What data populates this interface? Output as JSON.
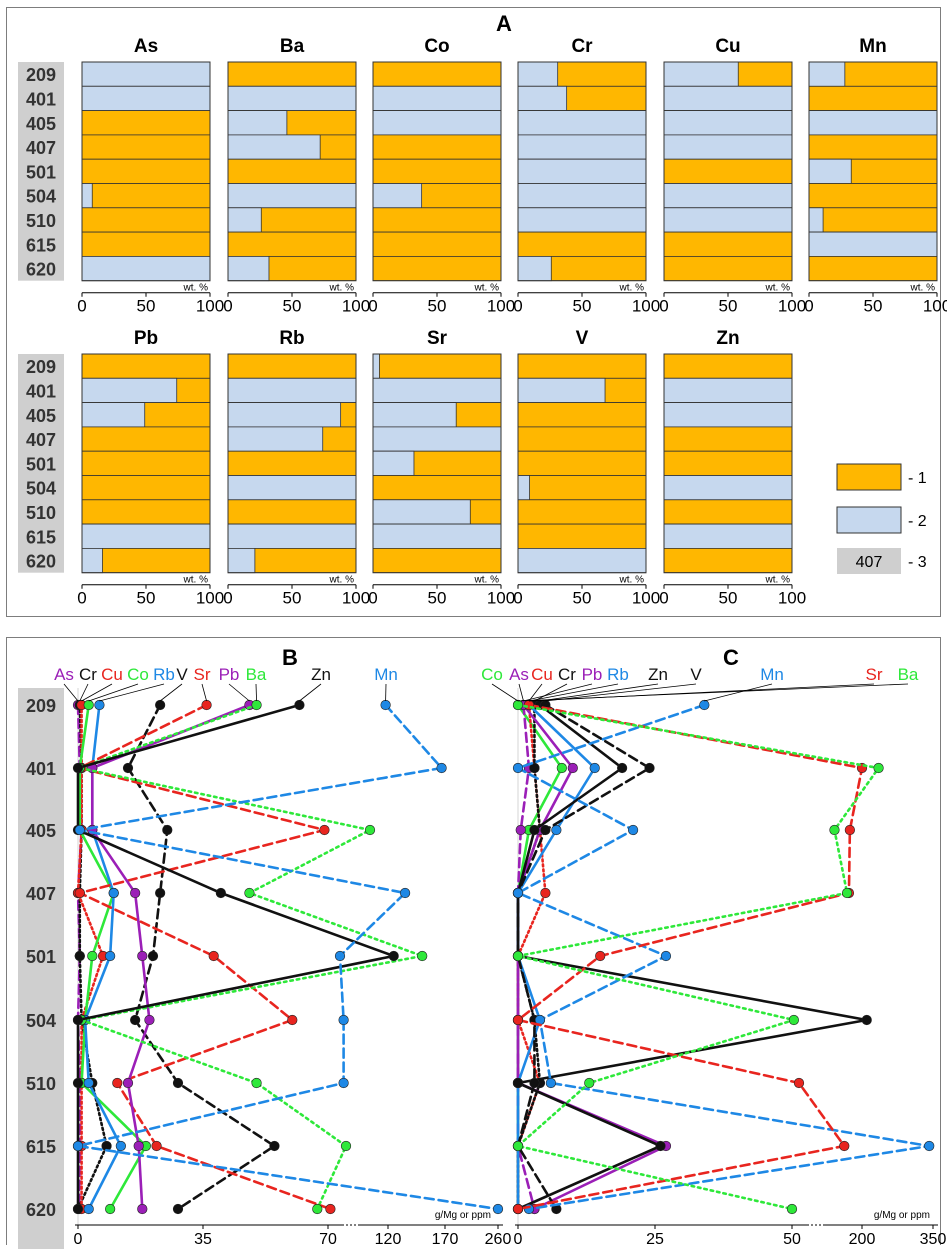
{
  "colors": {
    "orange": "#ffb700",
    "blue": "#c6d8ee",
    "gray": "#cfcfcf",
    "frame": "#7d7d7d"
  },
  "panel_a": {
    "label": "A",
    "sample_ids": [
      "209",
      "401",
      "405",
      "407",
      "501",
      "504",
      "510",
      "615",
      "620"
    ],
    "unit": "wt. %",
    "ticks": [
      "0",
      "50",
      "100"
    ]
  },
  "legend": [
    {
      "swatch": "orange",
      "text": "- 1",
      "box_text": ""
    },
    {
      "swatch": "blue",
      "text": "- 2",
      "box_text": ""
    },
    {
      "swatch": "gray",
      "text": "- 3",
      "box_text": "407"
    }
  ],
  "panel_b": {
    "label": "B",
    "unit": "g/Mg or ppm",
    "tick_labels": [
      "0",
      "35",
      "70",
      "120",
      "170",
      "260"
    ],
    "series_labels": [
      "As",
      "Cr",
      "Cu",
      "Co",
      "Rb",
      "V",
      "Sr",
      "Pb",
      "Ba",
      "Zn",
      "Mn"
    ]
  },
  "panel_c": {
    "label": "C",
    "unit": "g/Mg or ppm",
    "tick_labels": [
      "0",
      "25",
      "50",
      "200",
      "350"
    ],
    "series_labels": [
      "Co",
      "As",
      "Cu",
      "Cr",
      "Pb",
      "Rb",
      "Zn",
      "V",
      "Mn",
      "Sr",
      "Ba"
    ]
  },
  "chart_data": [
    {
      "type": "bar",
      "stacked_percent": true,
      "title": "A",
      "xlabel": "wt. %",
      "xlim": [
        0,
        100
      ],
      "categories": [
        "209",
        "401",
        "405",
        "407",
        "501",
        "504",
        "510",
        "615",
        "620"
      ],
      "series": [
        {
          "name": "1",
          "color": "#ffb700"
        },
        {
          "name": "2",
          "color": "#c6d8ee"
        }
      ],
      "element_order": [
        "As",
        "Ba",
        "Co",
        "Cr",
        "Cu",
        "Mn",
        "Pb",
        "Rb",
        "Sr",
        "V",
        "Zn"
      ],
      "elements": {
        "As": [
          [
            0,
            100
          ],
          [
            0,
            100
          ],
          [
            100,
            0
          ],
          [
            100,
            0
          ],
          [
            100,
            0
          ],
          [
            92,
            8
          ],
          [
            100,
            0
          ],
          [
            100,
            0
          ],
          [
            0,
            100
          ]
        ],
        "Ba": [
          [
            100,
            0
          ],
          [
            0,
            100
          ],
          [
            54,
            46
          ],
          [
            28,
            72
          ],
          [
            100,
            0
          ],
          [
            0,
            100
          ],
          [
            74,
            26
          ],
          [
            100,
            0
          ],
          [
            68,
            32
          ]
        ],
        "Co": [
          [
            100,
            0
          ],
          [
            0,
            100
          ],
          [
            0,
            100
          ],
          [
            100,
            0
          ],
          [
            100,
            0
          ],
          [
            62,
            38
          ],
          [
            100,
            0
          ],
          [
            100,
            0
          ],
          [
            100,
            0
          ]
        ],
        "Cr": [
          [
            69,
            31
          ],
          [
            62,
            38
          ],
          [
            0,
            100
          ],
          [
            0,
            100
          ],
          [
            0,
            100
          ],
          [
            0,
            100
          ],
          [
            0,
            100
          ],
          [
            100,
            0
          ],
          [
            74,
            26
          ]
        ],
        "Cu": [
          [
            42,
            58
          ],
          [
            0,
            100
          ],
          [
            0,
            100
          ],
          [
            0,
            100
          ],
          [
            100,
            0
          ],
          [
            0,
            100
          ],
          [
            0,
            100
          ],
          [
            100,
            0
          ],
          [
            100,
            0
          ]
        ],
        "Mn": [
          [
            72,
            28
          ],
          [
            100,
            0
          ],
          [
            0,
            100
          ],
          [
            100,
            0
          ],
          [
            67,
            33
          ],
          [
            100,
            0
          ],
          [
            89,
            11
          ],
          [
            0,
            100
          ],
          [
            100,
            0
          ]
        ],
        "Pb": [
          [
            100,
            0
          ],
          [
            26,
            74
          ],
          [
            51,
            49
          ],
          [
            100,
            0
          ],
          [
            100,
            0
          ],
          [
            100,
            0
          ],
          [
            100,
            0
          ],
          [
            0,
            100
          ],
          [
            84,
            16
          ]
        ],
        "Rb": [
          [
            100,
            0
          ],
          [
            0,
            100
          ],
          [
            12,
            88
          ],
          [
            26,
            74
          ],
          [
            100,
            0
          ],
          [
            0,
            100
          ],
          [
            100,
            0
          ],
          [
            0,
            100
          ],
          [
            79,
            21
          ]
        ],
        "Sr": [
          [
            95,
            5
          ],
          [
            0,
            100
          ],
          [
            35,
            65
          ],
          [
            0,
            100
          ],
          [
            68,
            32
          ],
          [
            100,
            0
          ],
          [
            24,
            76
          ],
          [
            0,
            100
          ],
          [
            100,
            0
          ]
        ],
        "V": [
          [
            100,
            0
          ],
          [
            32,
            68
          ],
          [
            100,
            0
          ],
          [
            100,
            0
          ],
          [
            100,
            0
          ],
          [
            91,
            9
          ],
          [
            100,
            0
          ],
          [
            100,
            0
          ],
          [
            0,
            100
          ]
        ],
        "Zn": [
          [
            100,
            0
          ],
          [
            0,
            100
          ],
          [
            0,
            100
          ],
          [
            100,
            0
          ],
          [
            100,
            0
          ],
          [
            0,
            100
          ],
          [
            100,
            0
          ],
          [
            0,
            100
          ],
          [
            100,
            0
          ]
        ]
      }
    },
    {
      "type": "line",
      "title": "B",
      "xlabel": "g/Mg or ppm",
      "categories": [
        "209",
        "401",
        "405",
        "407",
        "501",
        "504",
        "510",
        "615",
        "620"
      ],
      "axis_breaks": [
        70,
        120,
        170,
        260
      ],
      "series": [
        {
          "name": "As",
          "color": "#9b1fb7",
          "style": "dash",
          "values": [
            0,
            0.5,
            1,
            0,
            0.5,
            0,
            0.5,
            0.5,
            0.3
          ]
        },
        {
          "name": "Cr",
          "color": "#111111",
          "style": "dot",
          "values": [
            0.5,
            1,
            1,
            0.5,
            0.5,
            1,
            4,
            8,
            0
          ]
        },
        {
          "name": "Cu",
          "color": "#e8251f",
          "style": "dot",
          "values": [
            1,
            1,
            1,
            0,
            7,
            1,
            1,
            1,
            1
          ]
        },
        {
          "name": "Co",
          "color": "#2ee83a",
          "style": "solid",
          "values": [
            3,
            0.5,
            0.5,
            10,
            4,
            2,
            1,
            19,
            9
          ]
        },
        {
          "name": "Rb",
          "color": "#1e88e5",
          "style": "solid",
          "values": [
            6,
            4,
            4,
            10,
            9,
            2,
            3,
            12,
            3
          ]
        },
        {
          "name": "V",
          "color": "#111111",
          "style": "dash",
          "values": [
            23,
            14,
            25,
            23,
            21,
            16,
            28,
            55,
            28
          ]
        },
        {
          "name": "Sr",
          "color": "#e8251f",
          "style": "dash",
          "values": [
            36,
            0.5,
            69,
            0.5,
            38,
            60,
            11,
            22,
            72
          ]
        },
        {
          "name": "Pb",
          "color": "#9b1fb7",
          "style": "solid",
          "values": [
            48,
            4,
            4,
            16,
            18,
            20,
            14,
            17,
            18
          ]
        },
        {
          "name": "Ba",
          "color": "#2ee83a",
          "style": "dotted",
          "values": [
            50,
            0.5,
            105,
            48,
            150,
            1,
            50,
            85,
            67
          ]
        },
        {
          "name": "Zn",
          "color": "#111111",
          "style": "solid",
          "values": [
            62,
            0,
            0,
            40,
            125,
            0,
            0,
            0,
            0
          ]
        },
        {
          "name": "Mn",
          "color": "#1e88e5",
          "style": "dash",
          "values": [
            118,
            167,
            0.5,
            135,
            80,
            83,
            83,
            0,
            260
          ]
        }
      ]
    },
    {
      "type": "line",
      "title": "C",
      "xlabel": "g/Mg or ppm",
      "categories": [
        "209",
        "401",
        "405",
        "407",
        "501",
        "504",
        "510",
        "615",
        "620"
      ],
      "axis_breaks": [
        50,
        200,
        350
      ],
      "series": [
        {
          "name": "Co",
          "color": "#2ee83a",
          "style": "solid",
          "values": [
            0,
            8,
            2,
            0,
            0,
            0,
            0,
            0,
            0
          ]
        },
        {
          "name": "As",
          "color": "#9b1fb7",
          "style": "dash",
          "values": [
            1,
            2,
            0.5,
            0,
            0,
            0,
            0,
            0,
            3
          ]
        },
        {
          "name": "Cu",
          "color": "#e8251f",
          "style": "dot",
          "values": [
            2,
            3,
            4,
            5,
            0,
            0,
            4,
            0,
            0
          ]
        },
        {
          "name": "Cr",
          "color": "#111111",
          "style": "dot",
          "values": [
            3,
            3,
            4,
            0,
            0,
            3,
            4,
            0,
            0
          ]
        },
        {
          "name": "Pb",
          "color": "#9b1fb7",
          "style": "solid",
          "values": [
            1,
            10,
            4,
            0,
            0,
            0,
            0,
            27,
            3
          ]
        },
        {
          "name": "Rb",
          "color": "#1e88e5",
          "style": "solid",
          "values": [
            2,
            14,
            7,
            0,
            0,
            4,
            0,
            0,
            0
          ]
        },
        {
          "name": "Zn",
          "color": "#111111",
          "style": "solid",
          "values": [
            4,
            19,
            3,
            0,
            0,
            210,
            0,
            26,
            0
          ]
        },
        {
          "name": "V",
          "color": "#111111",
          "style": "dash",
          "values": [
            5,
            24,
            5,
            0,
            0,
            3,
            3,
            0,
            7
          ]
        },
        {
          "name": "Mn",
          "color": "#1e88e5",
          "style": "dash",
          "values": [
            34,
            0,
            21,
            0,
            27,
            4,
            6,
            342,
            2
          ]
        },
        {
          "name": "Sr",
          "color": "#e8251f",
          "style": "dash",
          "values": [
            2,
            200,
            174,
            172,
            15,
            0,
            65,
            162,
            0
          ]
        },
        {
          "name": "Ba",
          "color": "#2ee83a",
          "style": "dotted",
          "values": [
            0,
            235,
            141,
            168,
            0,
            54,
            13,
            0,
            50
          ]
        }
      ]
    }
  ]
}
